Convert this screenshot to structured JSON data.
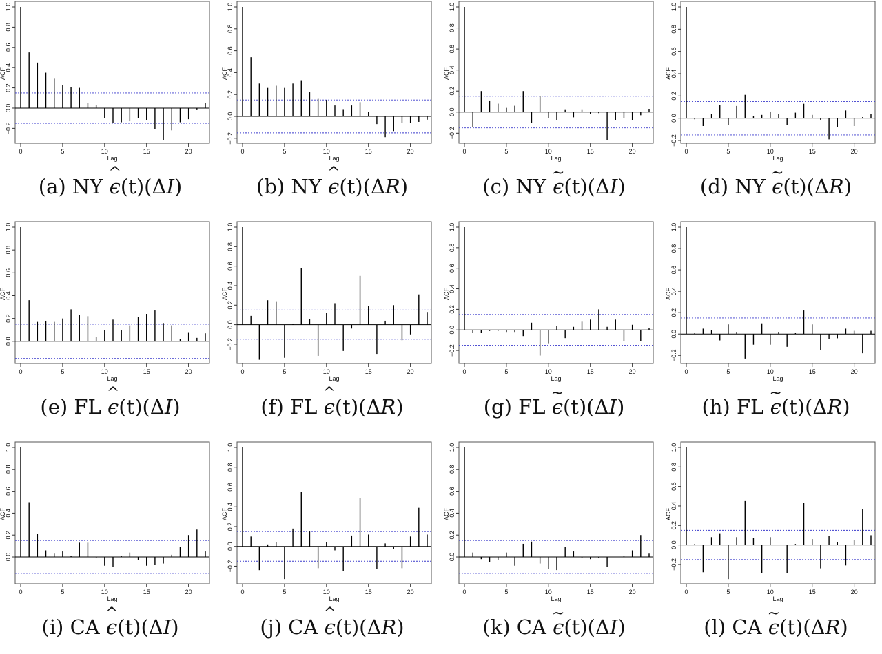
{
  "captions": [
    {
      "label": "(a)",
      "state": "NY",
      "accent": "hat",
      "var": "I"
    },
    {
      "label": "(b)",
      "state": "NY",
      "accent": "hat",
      "var": "R"
    },
    {
      "label": "(c)",
      "state": "NY",
      "accent": "tilde",
      "var": "I"
    },
    {
      "label": "(d)",
      "state": "NY",
      "accent": "tilde",
      "var": "R"
    },
    {
      "label": "(e)",
      "state": "FL",
      "accent": "hat",
      "var": "I"
    },
    {
      "label": "(f)",
      "state": "FL",
      "accent": "hat",
      "var": "R"
    },
    {
      "label": "(g)",
      "state": "FL",
      "accent": "tilde",
      "var": "I"
    },
    {
      "label": "(h)",
      "state": "FL",
      "accent": "tilde",
      "var": "R"
    },
    {
      "label": "(i)",
      "state": "CA",
      "accent": "hat",
      "var": "I"
    },
    {
      "label": "(j)",
      "state": "CA",
      "accent": "hat",
      "var": "R"
    },
    {
      "label": "(k)",
      "state": "CA",
      "accent": "tilde",
      "var": "I"
    },
    {
      "label": "(l)",
      "state": "CA",
      "accent": "tilde",
      "var": "R"
    }
  ],
  "symbols": {
    "epsilon": "ϵ",
    "hat": "^",
    "tilde": "~",
    "delta": "Δ",
    "t": "(t)"
  },
  "colors": {
    "bar": "#000000",
    "ci_line": "#3b3bcc",
    "frame": "#555555",
    "zero": "#000000"
  },
  "chart_data": [
    {
      "type": "bar",
      "subtype": "acf",
      "xlabel": "Lag",
      "ylabel": "ACF",
      "xlim": [
        0,
        22
      ],
      "ylim": [
        -0.32,
        1.0
      ],
      "x_ticks": [
        0,
        5,
        10,
        15,
        20
      ],
      "y_ticks": [
        -0.2,
        0.0,
        0.2,
        0.4,
        0.6,
        0.8,
        1.0
      ],
      "y_tick_labels": [
        "−0.2",
        "0.0",
        "0.2",
        "0.4",
        "0.6",
        "0.8",
        "1.0"
      ],
      "ci": 0.15,
      "lags": [
        0,
        1,
        2,
        3,
        4,
        5,
        6,
        7,
        8,
        9,
        10,
        11,
        12,
        13,
        14,
        15,
        16,
        17,
        18,
        19,
        20,
        21,
        22
      ],
      "values": [
        1.0,
        0.55,
        0.45,
        0.35,
        0.29,
        0.23,
        0.21,
        0.2,
        0.05,
        0.03,
        -0.1,
        -0.15,
        -0.14,
        -0.13,
        -0.1,
        -0.12,
        -0.21,
        -0.32,
        -0.22,
        -0.14,
        -0.11,
        -0.02,
        0.05
      ]
    },
    {
      "type": "bar",
      "subtype": "acf",
      "xlabel": "Lag",
      "ylabel": "ACF",
      "xlim": [
        0,
        22
      ],
      "ylim": [
        -0.22,
        1.0
      ],
      "x_ticks": [
        0,
        5,
        10,
        15,
        20
      ],
      "y_ticks": [
        -0.2,
        0.0,
        0.2,
        0.4,
        0.6,
        0.8,
        1.0
      ],
      "y_tick_labels": [
        "−0.2",
        "0.0",
        "0.2",
        "0.4",
        "0.6",
        "0.8",
        "1.0"
      ],
      "ci": 0.15,
      "lags": [
        0,
        1,
        2,
        3,
        4,
        5,
        6,
        7,
        8,
        9,
        10,
        11,
        12,
        13,
        14,
        15,
        16,
        17,
        18,
        19,
        20,
        21,
        22
      ],
      "values": [
        1.0,
        0.54,
        0.3,
        0.26,
        0.28,
        0.26,
        0.3,
        0.33,
        0.22,
        0.16,
        0.15,
        0.1,
        0.06,
        0.1,
        0.13,
        0.04,
        -0.07,
        -0.19,
        -0.14,
        -0.06,
        -0.06,
        -0.05,
        -0.03
      ]
    },
    {
      "type": "bar",
      "subtype": "acf",
      "xlabel": "Lag",
      "ylabel": "ACF",
      "xlim": [
        0,
        22
      ],
      "ylim": [
        -0.27,
        1.0
      ],
      "x_ticks": [
        0,
        5,
        10,
        15,
        20
      ],
      "y_ticks": [
        -0.2,
        0.0,
        0.2,
        0.4,
        0.6,
        0.8,
        1.0
      ],
      "y_tick_labels": [
        "−0.2",
        "0.0",
        "0.2",
        "0.4",
        "0.6",
        "0.8",
        "1.0"
      ],
      "ci": 0.15,
      "lags": [
        0,
        1,
        2,
        3,
        4,
        5,
        6,
        7,
        8,
        9,
        10,
        11,
        12,
        13,
        14,
        15,
        16,
        17,
        18,
        19,
        20,
        21,
        22
      ],
      "values": [
        1.0,
        -0.14,
        0.2,
        0.11,
        0.08,
        0.04,
        0.06,
        0.2,
        -0.1,
        0.15,
        -0.06,
        -0.08,
        0.02,
        -0.05,
        0.02,
        -0.02,
        -0.01,
        -0.27,
        -0.08,
        -0.06,
        -0.08,
        -0.03,
        0.03
      ]
    },
    {
      "type": "bar",
      "subtype": "acf",
      "xlabel": "Lag",
      "ylabel": "ACF",
      "xlim": [
        0,
        22
      ],
      "ylim": [
        -0.2,
        1.0
      ],
      "x_ticks": [
        0,
        5,
        10,
        15,
        20
      ],
      "y_ticks": [
        -0.2,
        0.0,
        0.2,
        0.4,
        0.6,
        0.8,
        1.0
      ],
      "y_tick_labels": [
        "−0.2",
        "0.0",
        "0.2",
        "0.4",
        "0.6",
        "0.8",
        "1.0"
      ],
      "ci": 0.15,
      "lags": [
        0,
        1,
        2,
        3,
        4,
        5,
        6,
        7,
        8,
        9,
        10,
        11,
        12,
        13,
        14,
        15,
        16,
        17,
        18,
        19,
        20,
        21,
        22
      ],
      "values": [
        1.0,
        -0.01,
        -0.07,
        0.04,
        0.12,
        -0.06,
        0.11,
        0.21,
        0.02,
        0.03,
        0.06,
        0.04,
        -0.06,
        0.05,
        0.13,
        0.03,
        -0.02,
        -0.19,
        -0.08,
        0.07,
        -0.07,
        0.01,
        0.04
      ]
    },
    {
      "type": "bar",
      "subtype": "acf",
      "xlabel": "Lag",
      "ylabel": "ACF",
      "xlim": [
        0,
        22
      ],
      "ylim": [
        -0.17,
        1.0
      ],
      "x_ticks": [
        0,
        5,
        10,
        15,
        20
      ],
      "y_ticks": [
        0.0,
        0.2,
        0.4,
        0.6,
        0.8,
        1.0
      ],
      "y_tick_labels": [
        "0.0",
        "0.2",
        "0.4",
        "0.6",
        "0.8",
        "1.0"
      ],
      "ci": 0.15,
      "lags": [
        0,
        1,
        2,
        3,
        4,
        5,
        6,
        7,
        8,
        9,
        10,
        11,
        12,
        13,
        14,
        15,
        16,
        17,
        18,
        19,
        20,
        21,
        22
      ],
      "values": [
        1.0,
        0.36,
        0.17,
        0.18,
        0.17,
        0.2,
        0.28,
        0.23,
        0.22,
        0.04,
        0.1,
        0.19,
        0.1,
        0.14,
        0.21,
        0.24,
        0.27,
        0.16,
        0.14,
        0.02,
        0.08,
        0.03,
        0.07
      ]
    },
    {
      "type": "bar",
      "subtype": "acf",
      "xlabel": "Lag",
      "ylabel": "ACF",
      "xlim": [
        0,
        22
      ],
      "ylim": [
        -0.37,
        1.0
      ],
      "x_ticks": [
        0,
        5,
        10,
        15,
        20
      ],
      "y_ticks": [
        -0.2,
        0.0,
        0.2,
        0.4,
        0.6,
        0.8,
        1.0
      ],
      "y_tick_labels": [
        "−0.2",
        "0.0",
        "0.2",
        "0.4",
        "0.6",
        "0.8",
        "1.0"
      ],
      "ci": 0.15,
      "lags": [
        0,
        1,
        2,
        3,
        4,
        5,
        6,
        7,
        8,
        9,
        10,
        11,
        12,
        13,
        14,
        15,
        16,
        17,
        18,
        19,
        20,
        21,
        22
      ],
      "values": [
        1.0,
        0.09,
        -0.36,
        0.25,
        0.24,
        -0.34,
        0.01,
        0.58,
        0.06,
        -0.32,
        0.12,
        0.22,
        -0.27,
        -0.04,
        0.5,
        0.19,
        -0.3,
        0.04,
        0.2,
        -0.16,
        -0.1,
        0.31,
        0.13
      ]
    },
    {
      "type": "bar",
      "subtype": "acf",
      "xlabel": "Lag",
      "ylabel": "ACF",
      "xlim": [
        0,
        22
      ],
      "ylim": [
        -0.3,
        1.0
      ],
      "x_ticks": [
        0,
        5,
        10,
        15,
        20
      ],
      "y_ticks": [
        -0.2,
        0.0,
        0.2,
        0.4,
        0.6,
        0.8,
        1.0
      ],
      "y_tick_labels": [
        "−0.2",
        "0.0",
        "0.2",
        "0.4",
        "0.6",
        "0.8",
        "1.0"
      ],
      "ci": 0.15,
      "lags": [
        0,
        1,
        2,
        3,
        4,
        5,
        6,
        7,
        8,
        9,
        10,
        11,
        12,
        13,
        14,
        15,
        16,
        17,
        18,
        19,
        20,
        21,
        22
      ],
      "values": [
        1.0,
        -0.03,
        -0.03,
        -0.01,
        -0.01,
        -0.02,
        -0.02,
        -0.06,
        0.07,
        -0.25,
        -0.13,
        0.04,
        -0.08,
        0.03,
        0.08,
        0.1,
        0.2,
        0.03,
        0.1,
        -0.11,
        0.05,
        -0.11,
        0.02
      ]
    },
    {
      "type": "bar",
      "subtype": "acf",
      "xlabel": "Lag",
      "ylabel": "ACF",
      "xlim": [
        0,
        22
      ],
      "ylim": [
        -0.25,
        1.0
      ],
      "x_ticks": [
        0,
        5,
        10,
        15,
        20
      ],
      "y_ticks": [
        -0.2,
        0.0,
        0.2,
        0.4,
        0.6,
        0.8,
        1.0
      ],
      "y_tick_labels": [
        "−0.2",
        "0.0",
        "0.2",
        "0.4",
        "0.6",
        "0.8",
        "1.0"
      ],
      "ci": 0.15,
      "lags": [
        0,
        1,
        2,
        3,
        4,
        5,
        6,
        7,
        8,
        9,
        10,
        11,
        12,
        13,
        14,
        15,
        16,
        17,
        18,
        19,
        20,
        21,
        22
      ],
      "values": [
        1.0,
        0.01,
        0.05,
        0.04,
        -0.06,
        0.09,
        0.02,
        -0.23,
        -0.1,
        0.1,
        -0.1,
        0.02,
        -0.12,
        0.01,
        0.22,
        0.09,
        -0.15,
        -0.05,
        -0.04,
        0.05,
        0.03,
        -0.18,
        0.03
      ]
    },
    {
      "type": "bar",
      "subtype": "acf",
      "xlabel": "Lag",
      "ylabel": "ACF",
      "xlim": [
        0,
        22
      ],
      "ylim": [
        -0.22,
        1.0
      ],
      "x_ticks": [
        0,
        5,
        10,
        15,
        20
      ],
      "y_ticks": [
        0.0,
        0.2,
        0.4,
        0.6,
        0.8,
        1.0
      ],
      "y_tick_labels": [
        "0.0",
        "0.2",
        "0.4",
        "0.6",
        "0.8",
        "1.0"
      ],
      "ci": 0.15,
      "lags": [
        0,
        1,
        2,
        3,
        4,
        5,
        6,
        7,
        8,
        9,
        10,
        11,
        12,
        13,
        14,
        15,
        16,
        17,
        18,
        19,
        20,
        21,
        22
      ],
      "values": [
        1.0,
        0.5,
        0.21,
        0.06,
        0.03,
        0.05,
        0.01,
        0.13,
        0.13,
        -0.01,
        -0.08,
        -0.09,
        0.01,
        0.04,
        -0.03,
        -0.08,
        -0.07,
        -0.06,
        0.02,
        0.09,
        0.2,
        0.25,
        0.05
      ]
    },
    {
      "type": "bar",
      "subtype": "acf",
      "xlabel": "Lag",
      "ylabel": "ACF",
      "xlim": [
        0,
        22
      ],
      "ylim": [
        -0.35,
        1.0
      ],
      "x_ticks": [
        0,
        5,
        10,
        15,
        20
      ],
      "y_ticks": [
        -0.2,
        0.0,
        0.2,
        0.4,
        0.6,
        0.8,
        1.0
      ],
      "y_tick_labels": [
        "−0.2",
        "0.0",
        "0.2",
        "0.4",
        "0.6",
        "0.8",
        "1.0"
      ],
      "ci": 0.15,
      "lags": [
        0,
        1,
        2,
        3,
        4,
        5,
        6,
        7,
        8,
        9,
        10,
        11,
        12,
        13,
        14,
        15,
        16,
        17,
        18,
        19,
        20,
        21,
        22
      ],
      "values": [
        1.0,
        0.1,
        -0.24,
        0.02,
        0.04,
        -0.33,
        0.18,
        0.55,
        0.15,
        -0.22,
        0.04,
        -0.04,
        -0.25,
        0.11,
        0.49,
        0.12,
        -0.23,
        0.03,
        -0.03,
        -0.22,
        0.1,
        0.39,
        0.12
      ]
    },
    {
      "type": "bar",
      "subtype": "acf",
      "xlabel": "Lag",
      "ylabel": "ACF",
      "xlim": [
        0,
        22
      ],
      "ylim": [
        -0.22,
        1.0
      ],
      "x_ticks": [
        0,
        5,
        10,
        15,
        20
      ],
      "y_ticks": [
        0.0,
        0.2,
        0.4,
        0.6,
        0.8,
        1.0
      ],
      "y_tick_labels": [
        "0.0",
        "0.2",
        "0.4",
        "0.6",
        "0.8",
        "1.0"
      ],
      "ci": 0.15,
      "lags": [
        0,
        1,
        2,
        3,
        4,
        5,
        6,
        7,
        8,
        9,
        10,
        11,
        12,
        13,
        14,
        15,
        16,
        17,
        18,
        19,
        20,
        21,
        22
      ],
      "values": [
        1.0,
        0.04,
        -0.02,
        -0.05,
        -0.03,
        0.04,
        -0.08,
        0.12,
        0.14,
        -0.06,
        -0.11,
        -0.12,
        0.09,
        0.05,
        -0.01,
        -0.02,
        -0.01,
        -0.09,
        0.0,
        0.01,
        0.06,
        0.2,
        0.03
      ]
    },
    {
      "type": "bar",
      "subtype": "acf",
      "xlabel": "Lag",
      "ylabel": "ACF",
      "xlim": [
        0,
        22
      ],
      "ylim": [
        -0.37,
        1.0
      ],
      "x_ticks": [
        0,
        5,
        10,
        15,
        20
      ],
      "y_ticks": [
        -0.2,
        0.0,
        0.2,
        0.4,
        0.6,
        0.8,
        1.0
      ],
      "y_tick_labels": [
        "−0.2",
        "0.0",
        "0.2",
        "0.4",
        "0.6",
        "0.8",
        "1.0"
      ],
      "ci": 0.15,
      "lags": [
        0,
        1,
        2,
        3,
        4,
        5,
        6,
        7,
        8,
        9,
        10,
        11,
        12,
        13,
        14,
        15,
        16,
        17,
        18,
        19,
        20,
        21,
        22
      ],
      "values": [
        1.0,
        0.01,
        -0.28,
        0.08,
        0.12,
        -0.35,
        0.08,
        0.45,
        0.07,
        -0.29,
        0.08,
        0.0,
        -0.29,
        0.01,
        0.43,
        0.06,
        -0.24,
        0.09,
        0.03,
        -0.21,
        0.05,
        0.37,
        0.1
      ]
    }
  ]
}
